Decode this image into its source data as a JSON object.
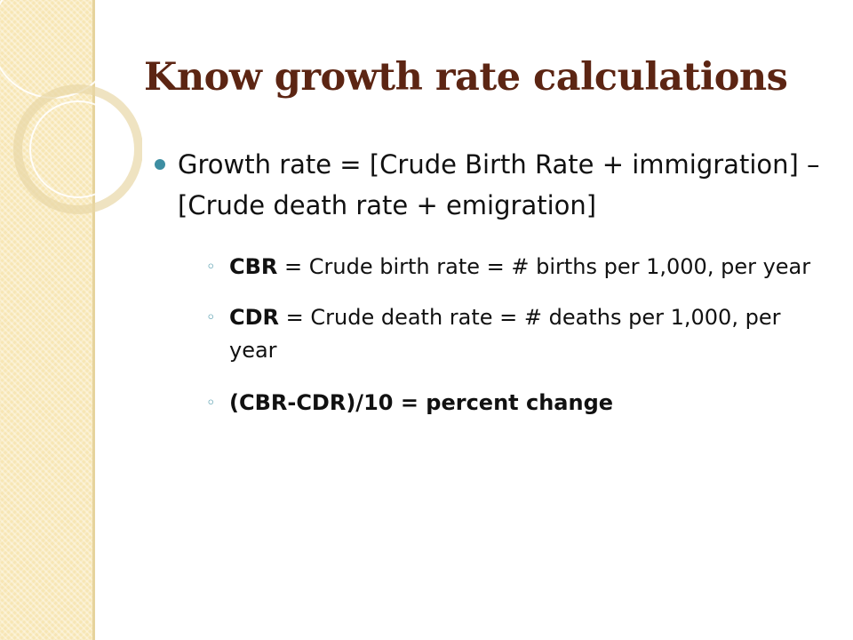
{
  "slide": {
    "title": "Know growth rate calculations",
    "main_point": {
      "text": "Growth rate = [Crude Birth Rate + immigration] – [Crude death rate + emigration]"
    },
    "sub_points": [
      {
        "term": "CBR",
        "text": " = Crude birth rate = # births per 1,000, per year"
      },
      {
        "term": "CDR",
        "text": " = Crude death rate = # deaths per 1,000, per year"
      },
      {
        "term": "(CBR-CDR)/10 = percent change",
        "text": ""
      }
    ]
  },
  "colors": {
    "title": "#5c2513",
    "bullet": "#3d8ea2",
    "sidebar": "#f7e6b4"
  }
}
